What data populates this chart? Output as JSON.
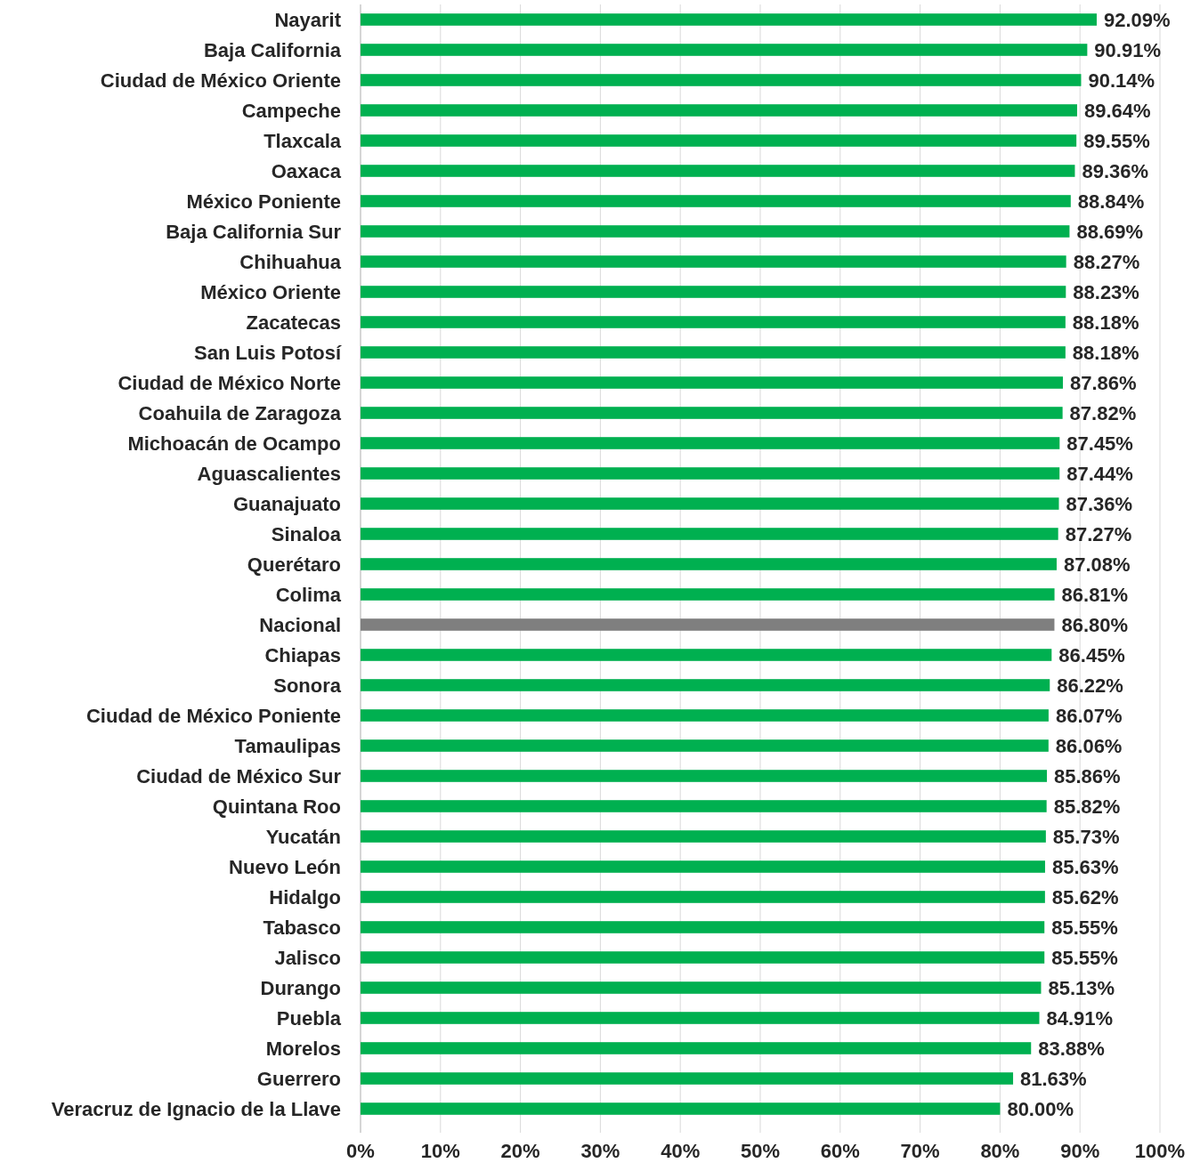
{
  "chart_data": {
    "type": "bar",
    "orientation": "horizontal",
    "categories": [
      "Nayarit",
      "Baja California",
      "Ciudad de México Oriente",
      "Campeche",
      "Tlaxcala",
      "Oaxaca",
      "México Poniente",
      "Baja California Sur",
      "Chihuahua",
      "México Oriente",
      "Zacatecas",
      "San Luis Potosí",
      "Ciudad de México Norte",
      "Coahuila de Zaragoza",
      "Michoacán de Ocampo",
      "Aguascalientes",
      "Guanajuato",
      "Sinaloa",
      "Querétaro",
      "Colima",
      "Nacional",
      "Chiapas",
      "Sonora",
      "Ciudad de México Poniente",
      "Tamaulipas",
      "Ciudad de México Sur",
      "Quintana Roo",
      "Yucatán",
      "Nuevo León",
      "Hidalgo",
      "Tabasco",
      "Jalisco",
      "Durango",
      "Puebla",
      "Morelos",
      "Guerrero",
      "Veracruz de Ignacio de la Llave"
    ],
    "values": [
      92.09,
      90.91,
      90.14,
      89.64,
      89.55,
      89.36,
      88.84,
      88.69,
      88.27,
      88.23,
      88.18,
      88.18,
      87.86,
      87.82,
      87.45,
      87.44,
      87.36,
      87.27,
      87.08,
      86.81,
      86.8,
      86.45,
      86.22,
      86.07,
      86.06,
      85.86,
      85.82,
      85.73,
      85.63,
      85.62,
      85.55,
      85.55,
      85.13,
      84.91,
      83.88,
      81.63,
      80.0
    ],
    "value_labels": [
      "92.09%",
      "90.91%",
      "90.14%",
      "89.64%",
      "89.55%",
      "89.36%",
      "88.84%",
      "88.69%",
      "88.27%",
      "88.23%",
      "88.18%",
      "88.18%",
      "87.86%",
      "87.82%",
      "87.45%",
      "87.44%",
      "87.36%",
      "87.27%",
      "87.08%",
      "86.81%",
      "86.80%",
      "86.45%",
      "86.22%",
      "86.07%",
      "86.06%",
      "85.86%",
      "85.82%",
      "85.73%",
      "85.63%",
      "85.62%",
      "85.55%",
      "85.55%",
      "85.13%",
      "84.91%",
      "83.88%",
      "81.63%",
      "80.00%"
    ],
    "colors": [
      "#00b050",
      "#00b050",
      "#00b050",
      "#00b050",
      "#00b050",
      "#00b050",
      "#00b050",
      "#00b050",
      "#00b050",
      "#00b050",
      "#00b050",
      "#00b050",
      "#00b050",
      "#00b050",
      "#00b050",
      "#00b050",
      "#00b050",
      "#00b050",
      "#00b050",
      "#00b050",
      "#7f7f7f",
      "#00b050",
      "#00b050",
      "#00b050",
      "#00b050",
      "#00b050",
      "#00b050",
      "#00b050",
      "#00b050",
      "#00b050",
      "#00b050",
      "#00b050",
      "#00b050",
      "#00b050",
      "#00b050",
      "#00b050",
      "#00b050"
    ],
    "xlim": [
      0,
      100
    ],
    "xticks": [
      {
        "value": 0,
        "label": "0%"
      },
      {
        "value": 10,
        "label": "10%"
      },
      {
        "value": 20,
        "label": "20%"
      },
      {
        "value": 30,
        "label": "30%"
      },
      {
        "value": 40,
        "label": "40%"
      },
      {
        "value": 50,
        "label": "50%"
      },
      {
        "value": 60,
        "label": "60%"
      },
      {
        "value": 70,
        "label": "70%"
      },
      {
        "value": 80,
        "label": "80%"
      },
      {
        "value": 90,
        "label": "90%"
      },
      {
        "value": 100,
        "label": "100%"
      }
    ],
    "grid": "x"
  }
}
